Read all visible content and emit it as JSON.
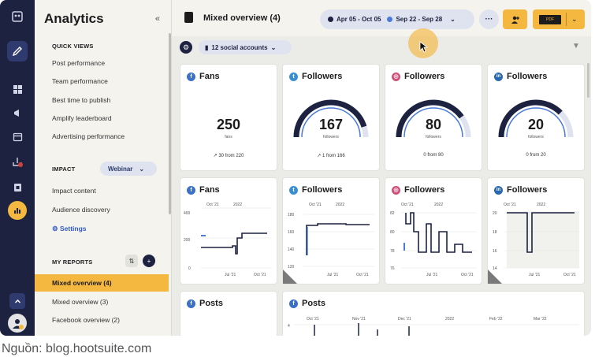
{
  "sidebar": {
    "title": "Analytics",
    "collapse": "«",
    "quick_views_heading": "QUICK VIEWS",
    "quick_views": [
      "Post performance",
      "Team performance",
      "Best time to publish",
      "Amplify leaderboard",
      "Advertising performance"
    ],
    "impact_heading": "IMPACT",
    "impact_select": "Webinar",
    "impact_items": [
      "Impact content",
      "Audience discovery"
    ],
    "settings_label": "Settings",
    "my_reports_heading": "MY REPORTS",
    "my_reports": [
      "Mixed overview (4)",
      "Mixed overview (3)",
      "Facebook overview (2)"
    ]
  },
  "header": {
    "title": "Mixed overview (4)",
    "date_range_1": "Apr 05 - Oct 05",
    "date_range_2": "Sep 22 - Sep 28",
    "more": "···",
    "pdf_label": "PDF"
  },
  "filters": {
    "accounts": "12 social accounts"
  },
  "colors": {
    "rail": "#1c2240",
    "accent": "#f4b73f",
    "facebook": "#3b70c9",
    "twitter": "#3b8fd1",
    "instagram": "#d0507a",
    "linkedin": "#2a69b0"
  },
  "summary_cards": [
    {
      "network": "facebook",
      "icon": "f",
      "title": "Fans",
      "value": "250",
      "unit": "fans",
      "delta": "↗ 30 from 220",
      "gauge": null
    },
    {
      "network": "twitter",
      "icon": "t",
      "title": "Followers",
      "value": "167",
      "unit": "followers",
      "delta": "↗ 1 from 166",
      "gauge": 0.9
    },
    {
      "network": "instagram",
      "icon": "◎",
      "title": "Followers",
      "value": "80",
      "unit": "followers",
      "delta": "0 from 80",
      "gauge": 0.8
    },
    {
      "network": "linkedin",
      "icon": "in",
      "title": "Followers",
      "value": "20",
      "unit": "followers",
      "delta": "0 from 20",
      "gauge": 0.75
    }
  ],
  "chart_cards": [
    {
      "network": "facebook",
      "icon": "f",
      "title": "Fans",
      "yticks": [
        "400",
        "200",
        "0"
      ],
      "xticks": [
        "Oct '21",
        "2022",
        "Jul '21",
        "Oct '21"
      ]
    },
    {
      "network": "twitter",
      "icon": "t",
      "title": "Followers",
      "yticks": [
        "180",
        "160",
        "140",
        "120"
      ],
      "xticks": [
        "Oct '21",
        "2022",
        "Jul '21",
        "Oct '21"
      ]
    },
    {
      "network": "instagram",
      "icon": "◎",
      "title": "Followers",
      "yticks": [
        "82",
        "80",
        "78",
        "76"
      ],
      "xticks": [
        "Oct '21",
        "2022",
        "Jul '21",
        "Oct '21"
      ]
    },
    {
      "network": "linkedin",
      "icon": "in",
      "title": "Followers",
      "yticks": [
        "20",
        "18",
        "16",
        "14"
      ],
      "xticks": [
        "Oct '21",
        "2022",
        "Jul '21",
        "Oct '21"
      ]
    }
  ],
  "bottom_cards": [
    {
      "network": "facebook",
      "icon": "f",
      "title": "Posts"
    },
    {
      "network": "facebook",
      "icon": "f",
      "title": "Posts",
      "yticks": [
        "4"
      ],
      "xticks": [
        "Oct '21",
        "Nov '21",
        "Dec '21",
        "2022",
        "Feb '22",
        "Mar '22"
      ]
    }
  ],
  "caption": "Nguồn: blog.hootsuite.com"
}
